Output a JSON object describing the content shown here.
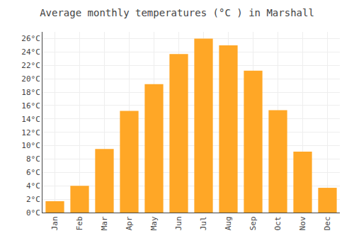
{
  "chart_data": {
    "type": "bar",
    "title": "Average monthly temperatures (°C ) in Marshall",
    "categories": [
      "Jan",
      "Feb",
      "Mar",
      "Apr",
      "May",
      "Jun",
      "Jul",
      "Aug",
      "Sep",
      "Oct",
      "Nov",
      "Dec"
    ],
    "values": [
      1.7,
      4.0,
      9.5,
      15.2,
      19.2,
      23.7,
      26.0,
      25.0,
      21.2,
      15.3,
      9.1,
      3.7
    ],
    "color": "#FFA726",
    "ylim": [
      0,
      27
    ],
    "yticks": [
      {
        "value": 0,
        "label": "0°C"
      },
      {
        "value": 2,
        "label": "2°C"
      },
      {
        "value": 4,
        "label": "4°C"
      },
      {
        "value": 6,
        "label": "6°C"
      },
      {
        "value": 8,
        "label": "8°C"
      },
      {
        "value": 10,
        "label": "10°C"
      },
      {
        "value": 12,
        "label": "12°C"
      },
      {
        "value": 14,
        "label": "14°C"
      },
      {
        "value": 16,
        "label": "16°C"
      },
      {
        "value": 18,
        "label": "18°C"
      },
      {
        "value": 20,
        "label": "20°C"
      },
      {
        "value": 22,
        "label": "22°C"
      },
      {
        "value": 24,
        "label": "24°C"
      },
      {
        "value": 26,
        "label": "26°C"
      }
    ],
    "grid": true
  }
}
